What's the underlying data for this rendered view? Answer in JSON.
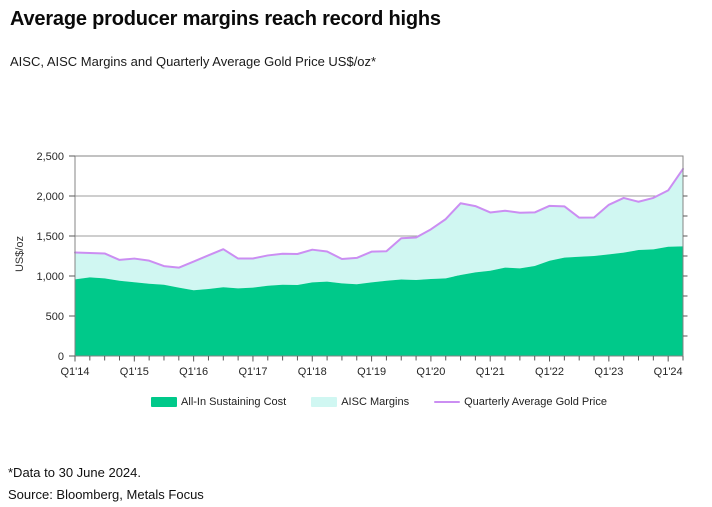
{
  "title": "Average producer margins reach record highs",
  "subtitle": "AISC, AISC Margins and Quarterly Average Gold Price US$/oz*",
  "footnote": "*Data to 30 June 2024.",
  "source": "Source: Bloomberg, Metals Focus",
  "colors": {
    "aisc_area": "#00c98a",
    "margins_area": "#d0f7f2",
    "gold_line": "#cb8ef2",
    "gridline": "#9c9c9c",
    "axis_box": "#848484",
    "tick": "#5a5a5a",
    "axis_label": "#262626",
    "background": "#ffffff"
  },
  "legend": {
    "items": [
      {
        "label": "All-In Sustaining Cost",
        "swatch": "area"
      },
      {
        "label": "AISC Margins",
        "swatch": "area"
      },
      {
        "label": "Quarterly Average Gold Price",
        "swatch": "line"
      }
    ]
  },
  "chart_data": {
    "type": "area",
    "title": "Average producer margins reach record highs",
    "subtitle": "AISC, AISC Margins and Quarterly Average Gold Price US$/oz*",
    "xlabel": "",
    "ylabel": "US$/oz",
    "ylim": [
      0,
      2500
    ],
    "grid": "horizontal",
    "legend_position": "bottom",
    "y_ticks": [
      {
        "value": 0,
        "label": "0"
      },
      {
        "value": 500,
        "label": "500"
      },
      {
        "value": 1000,
        "label": "1,000"
      },
      {
        "value": 1500,
        "label": "1,500"
      },
      {
        "value": 2000,
        "label": "2,000"
      },
      {
        "value": 2500,
        "label": "2,500"
      }
    ],
    "y_gridlines": [
      500,
      1000,
      1500,
      2000
    ],
    "y_minor_tick_step_right": 250,
    "x": [
      "Q1'14",
      "Q2'14",
      "Q3'14",
      "Q4'14",
      "Q1'15",
      "Q2'15",
      "Q3'15",
      "Q4'15",
      "Q1'16",
      "Q2'16",
      "Q3'16",
      "Q4'16",
      "Q1'17",
      "Q2'17",
      "Q3'17",
      "Q4'17",
      "Q1'18",
      "Q2'18",
      "Q3'18",
      "Q4'18",
      "Q1'19",
      "Q2'19",
      "Q3'19",
      "Q4'19",
      "Q1'20",
      "Q2'20",
      "Q3'20",
      "Q4'20",
      "Q1'21",
      "Q2'21",
      "Q3'21",
      "Q4'21",
      "Q1'22",
      "Q2'22",
      "Q3'22",
      "Q4'22",
      "Q1'23",
      "Q2'23",
      "Q3'23",
      "Q4'23",
      "Q1'24",
      "Q2'24"
    ],
    "x_tick_labels": [
      "Q1'14",
      "Q1'15",
      "Q1'16",
      "Q1'17",
      "Q1'18",
      "Q1'19",
      "Q1'20",
      "Q1'21",
      "Q1'22",
      "Q1'23",
      "Q1'24"
    ],
    "x_tick_label_step": 4,
    "series": [
      {
        "name": "All-In Sustaining Cost",
        "type": "area",
        "color": "#00c98a",
        "values": [
          958,
          983,
          971,
          941,
          922,
          903,
          890,
          855,
          822,
          838,
          860,
          845,
          855,
          878,
          890,
          887,
          920,
          929,
          908,
          897,
          920,
          940,
          957,
          950,
          962,
          971,
          1013,
          1046,
          1066,
          1105,
          1096,
          1125,
          1191,
          1229,
          1241,
          1250,
          1271,
          1292,
          1325,
          1333,
          1365,
          1370
        ]
      },
      {
        "name": "AISC Margins",
        "type": "area",
        "stacked_on": "All-In Sustaining Cost",
        "color": "#d0f7f2",
        "values": [
          335,
          305,
          311,
          260,
          296,
          289,
          234,
          249,
          359,
          420,
          475,
          373,
          364,
          379,
          388,
          388,
          409,
          377,
          305,
          329,
          384,
          369,
          515,
          531,
          621,
          740,
          896,
          828,
          728,
          711,
          694,
          670,
          686,
          642,
          488,
          481,
          619,
          684,
          603,
          643,
          705,
          968
        ]
      },
      {
        "name": "Quarterly Average Gold Price",
        "type": "line",
        "color": "#cb8ef2",
        "values": [
          1293,
          1288,
          1282,
          1201,
          1218,
          1192,
          1124,
          1104,
          1181,
          1258,
          1335,
          1218,
          1219,
          1257,
          1278,
          1275,
          1329,
          1306,
          1213,
          1226,
          1304,
          1309,
          1472,
          1481,
          1583,
          1711,
          1909,
          1874,
          1794,
          1816,
          1790,
          1795,
          1877,
          1871,
          1729,
          1731,
          1890,
          1976,
          1928,
          1976,
          2070,
          2338
        ]
      }
    ]
  }
}
